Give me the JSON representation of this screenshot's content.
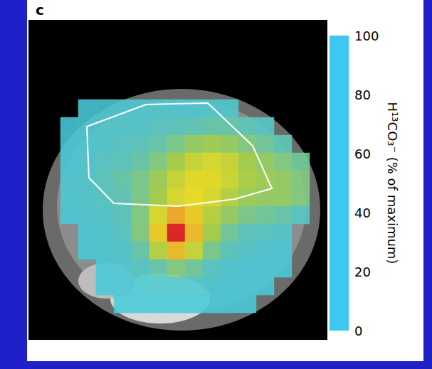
{
  "chart_data": {
    "type": "heatmap",
    "panel_label": "c",
    "tick_labels": false,
    "cells": [
      [
        null,
        8,
        10,
        10,
        10,
        12,
        10,
        10,
        12,
        12,
        null,
        null,
        null,
        null
      ],
      [
        8,
        10,
        12,
        12,
        12,
        15,
        18,
        20,
        22,
        22,
        20,
        15,
        null,
        null
      ],
      [
        8,
        10,
        12,
        15,
        18,
        22,
        28,
        35,
        38,
        35,
        30,
        25,
        20,
        null
      ],
      [
        8,
        10,
        15,
        18,
        22,
        30,
        40,
        50,
        55,
        50,
        40,
        35,
        30,
        25
      ],
      [
        10,
        12,
        18,
        22,
        28,
        38,
        50,
        58,
        58,
        52,
        42,
        38,
        35,
        30
      ],
      [
        10,
        12,
        15,
        20,
        28,
        40,
        55,
        60,
        55,
        45,
        38,
        35,
        35,
        30
      ],
      [
        8,
        10,
        12,
        18,
        30,
        55,
        75,
        65,
        45,
        35,
        28,
        25,
        22,
        15
      ],
      [
        null,
        8,
        10,
        15,
        30,
        65,
        100,
        70,
        40,
        25,
        18,
        15,
        12,
        null
      ],
      [
        null,
        8,
        10,
        12,
        22,
        45,
        70,
        50,
        28,
        18,
        12,
        10,
        8,
        null
      ],
      [
        null,
        null,
        8,
        10,
        15,
        22,
        30,
        25,
        15,
        10,
        8,
        8,
        8,
        null
      ],
      [
        null,
        null,
        8,
        8,
        10,
        12,
        12,
        12,
        10,
        8,
        8,
        8,
        null,
        null
      ],
      [
        null,
        null,
        null,
        8,
        8,
        8,
        8,
        8,
        8,
        8,
        8,
        null,
        null,
        null
      ]
    ],
    "colorbar": {
      "label": "H¹³CO₃⁻ (% of maximum)",
      "lim": [
        0,
        100
      ],
      "ticks": [
        0,
        20,
        40,
        60,
        80,
        100
      ]
    }
  }
}
